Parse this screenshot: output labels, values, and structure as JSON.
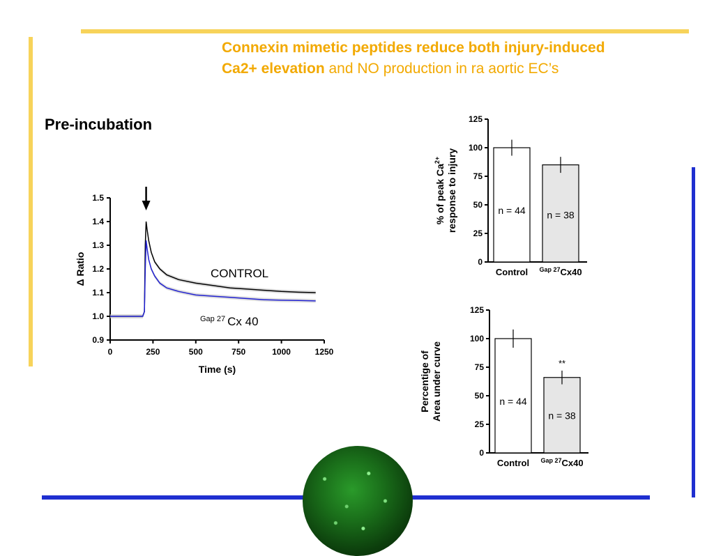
{
  "slide": {
    "title_bold_1": "Connexin mimetic peptides reduce both injury-induced",
    "title_bold_2": "Ca2+ elevation",
    "title_rest": " and NO production in ra aortic EC’s",
    "subtitle": "Pre-incubation",
    "colors": {
      "title": "#f2a900",
      "accent_yellow": "#f7d35a",
      "accent_blue": "#1f2fd0"
    }
  },
  "chart_data": [
    {
      "type": "line",
      "ylabel": "Δ Ratio",
      "xlabel": "Time (s)",
      "xlim": [
        0,
        1250
      ],
      "ylim": [
        0.9,
        1.5
      ],
      "xticks": [
        "0",
        "250",
        "500",
        "750",
        "1000",
        "1250"
      ],
      "yticks": [
        "0.9",
        "1.0",
        "1.1",
        "1.2",
        "1.3",
        "1.4",
        "1.5"
      ],
      "annotation_arrow_x": 210,
      "series": [
        {
          "name": "CONTROL",
          "color": "#000000",
          "x": [
            0,
            100,
            190,
            200,
            205,
            210,
            215,
            225,
            240,
            260,
            290,
            330,
            400,
            500,
            600,
            700,
            800,
            900,
            1000,
            1100,
            1200
          ],
          "y": [
            1.0,
            1.0,
            1.0,
            1.02,
            1.3,
            1.4,
            1.37,
            1.32,
            1.27,
            1.23,
            1.2,
            1.175,
            1.155,
            1.14,
            1.13,
            1.12,
            1.115,
            1.11,
            1.105,
            1.102,
            1.1
          ]
        },
        {
          "name": "Gap 27 Cx 40",
          "name_sup": "Gap 27",
          "name_main": "Cx 40",
          "color": "#2020d0",
          "x": [
            0,
            100,
            190,
            200,
            205,
            210,
            215,
            225,
            240,
            260,
            290,
            330,
            400,
            500,
            600,
            700,
            800,
            900,
            1000,
            1100,
            1200
          ],
          "y": [
            1.0,
            1.0,
            1.0,
            1.02,
            1.2,
            1.32,
            1.29,
            1.24,
            1.2,
            1.17,
            1.14,
            1.12,
            1.105,
            1.09,
            1.085,
            1.08,
            1.075,
            1.07,
            1.068,
            1.067,
            1.065
          ]
        }
      ]
    },
    {
      "type": "bar",
      "ylabel_line1": "% of peak Ca",
      "ylabel_sup": "2+",
      "ylabel_line2": "response to injury",
      "ylim": [
        0,
        125
      ],
      "yticks": [
        "0",
        "25",
        "50",
        "75",
        "100",
        "125"
      ],
      "bars": [
        {
          "label": "Control",
          "value": 100,
          "error": 7,
          "n": "n = 44"
        },
        {
          "label_sup": "Gap 27",
          "label": "Cx40",
          "value": 85,
          "error": 7,
          "n": "n = 38"
        }
      ]
    },
    {
      "type": "bar",
      "ylabel_line1": "Percentige of",
      "ylabel_line2": "Area under curve",
      "ylim": [
        0,
        125
      ],
      "yticks": [
        "0",
        "25",
        "50",
        "75",
        "100",
        "125"
      ],
      "significance": "**",
      "bars": [
        {
          "label": "Control",
          "value": 100,
          "error": 8,
          "n": "n = 44"
        },
        {
          "label_sup": "Gap 27",
          "label": "Cx40",
          "value": 66,
          "error": 6,
          "n": "n = 38"
        }
      ]
    }
  ]
}
